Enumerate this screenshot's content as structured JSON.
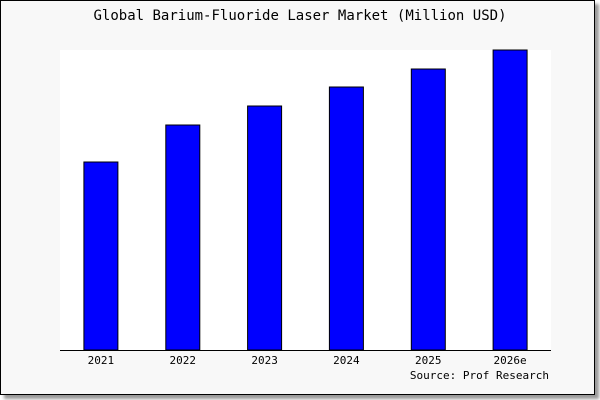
{
  "chart_data": {
    "type": "bar",
    "title": "Global Barium-Fluoride Laser Market (Million USD)",
    "categories": [
      "2021",
      "2022",
      "2023",
      "2024",
      "2025",
      "2026e"
    ],
    "values": [
      188,
      225,
      244,
      263,
      281,
      300
    ],
    "ylim": [
      0,
      300
    ],
    "xlabel": "",
    "ylabel": "",
    "grid": false,
    "bar_color": "#0000ff",
    "source": "Source: Prof Research"
  }
}
